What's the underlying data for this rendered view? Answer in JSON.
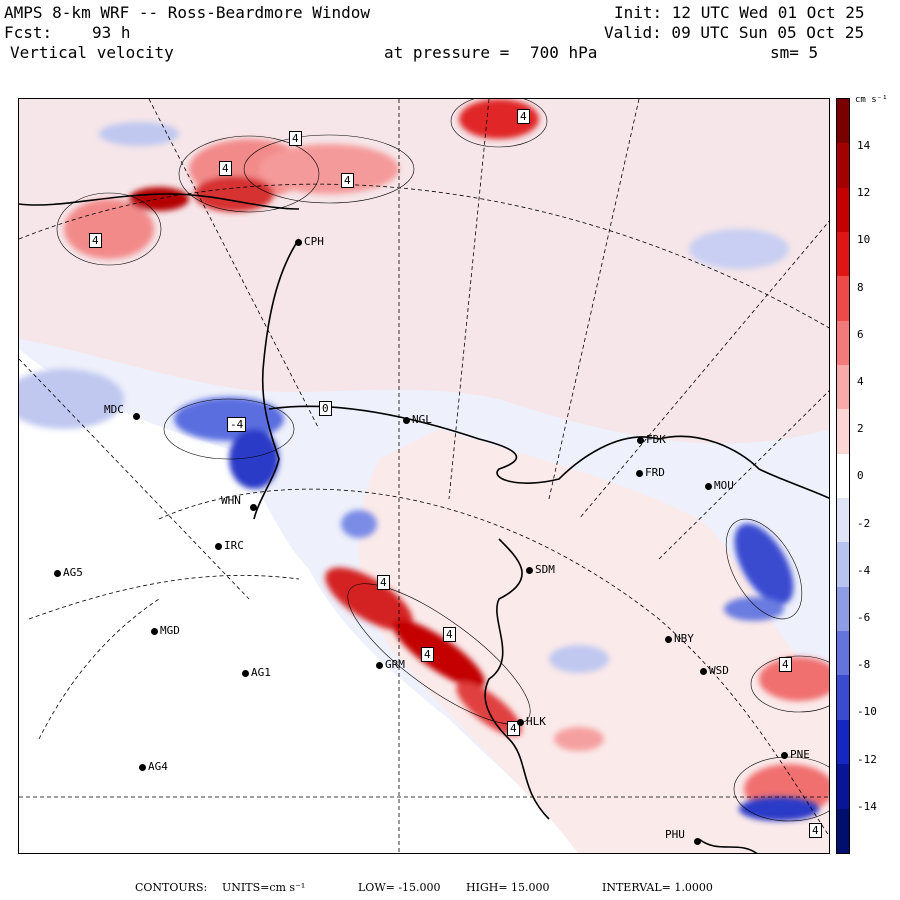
{
  "header": {
    "title": "AMPS 8-km WRF -- Ross-Beardmore Window",
    "forecast_label": "Fcst:",
    "forecast_hours": "93 h",
    "field": "Vertical velocity",
    "init": "Init: 12 UTC Wed 01 Oct 25",
    "valid": "Valid: 09 UTC Sun 05 Oct 25",
    "pressure_label": "at pressure =",
    "pressure_value": "700 hPa",
    "smoothing": "sm= 5"
  },
  "colorbar": {
    "unit": "cm s⁻¹",
    "ticks": [
      "14",
      "12",
      "10",
      "8",
      "6",
      "4",
      "2",
      "0",
      "-2",
      "-4",
      "-6",
      "-8",
      "-10",
      "-12",
      "-14"
    ],
    "colors": [
      "#7a0000",
      "#a30000",
      "#c40000",
      "#e01616",
      "#ee4a4a",
      "#f37a7a",
      "#f8a9a9",
      "#fcd5d5",
      "#ffffff",
      "#dfe4f7",
      "#b9c3ef",
      "#8e9ce6",
      "#6474dc",
      "#3a4bd0",
      "#1626c0",
      "#0a1496",
      "#000e6e"
    ]
  },
  "stations": [
    {
      "id": "CPH",
      "label": "CPH"
    },
    {
      "id": "MDC",
      "label": "MDC"
    },
    {
      "id": "NGL",
      "label": "NGL"
    },
    {
      "id": "FDK",
      "label": "FDK"
    },
    {
      "id": "FRD",
      "label": "FRD"
    },
    {
      "id": "MOU",
      "label": "MOU"
    },
    {
      "id": "WHN",
      "label": "WHN"
    },
    {
      "id": "IRC",
      "label": "IRC"
    },
    {
      "id": "AG5",
      "label": "AG5"
    },
    {
      "id": "SDM",
      "label": "SDM"
    },
    {
      "id": "MGD",
      "label": "MGD"
    },
    {
      "id": "NBY",
      "label": "NBY"
    },
    {
      "id": "AG1",
      "label": "AG1"
    },
    {
      "id": "GRM",
      "label": "GRM"
    },
    {
      "id": "WSD",
      "label": "WSD"
    },
    {
      "id": "HLK",
      "label": "HLK"
    },
    {
      "id": "AG4",
      "label": "AG4"
    },
    {
      "id": "PNE",
      "label": "PNE"
    },
    {
      "id": "PHU",
      "label": "PHU"
    }
  ],
  "contour_labels": [
    "4",
    "4",
    "4",
    "4",
    "4",
    "4",
    "4",
    "4",
    "4",
    "4",
    "-4",
    "4",
    "0"
  ],
  "footer": {
    "contours_label": "CONTOURS:",
    "units_label": "UNITS=cm s⁻¹",
    "low": "LOW= -15.000",
    "high": "HIGH= 15.000",
    "interval": "INTERVAL= 1.0000"
  },
  "colors": {
    "positive": "#e04040",
    "negative": "#3a4bd0",
    "background": "#ffffff"
  }
}
